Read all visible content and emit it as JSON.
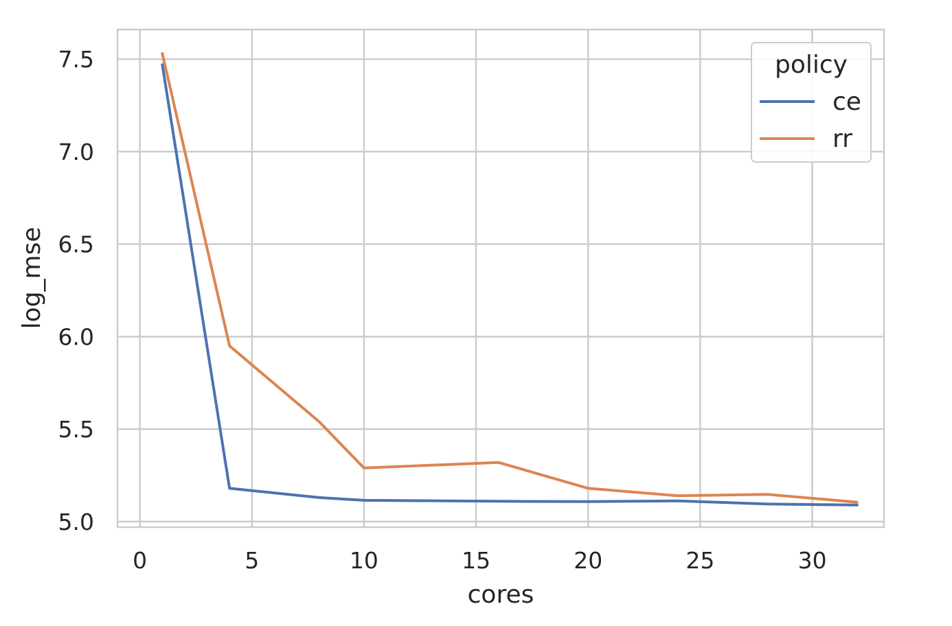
{
  "chart_data": {
    "type": "line",
    "title": "",
    "xlabel": "cores",
    "ylabel": "log_mse",
    "xlim": [
      -1,
      33.2
    ],
    "ylim": [
      4.97,
      7.66
    ],
    "xticks": [
      0,
      5,
      10,
      15,
      20,
      25,
      30
    ],
    "yticks": [
      5.0,
      5.5,
      6.0,
      6.5,
      7.0,
      7.5
    ],
    "ytick_labels": [
      "5.0",
      "5.5",
      "6.0",
      "6.5",
      "7.0",
      "7.5"
    ],
    "grid": true,
    "legend": {
      "title": "policy",
      "placement": "top-right"
    },
    "series": [
      {
        "name": "ce",
        "color": "#4c72b0",
        "x": [
          1,
          4,
          8,
          10,
          16,
          20,
          24,
          28,
          32
        ],
        "y": [
          7.47,
          5.18,
          5.13,
          5.115,
          5.11,
          5.108,
          5.112,
          5.095,
          5.09
        ]
      },
      {
        "name": "rr",
        "color": "#dd8452",
        "x": [
          1,
          4,
          8,
          10,
          16,
          20,
          24,
          28,
          32
        ],
        "y": [
          7.53,
          5.95,
          5.54,
          5.29,
          5.32,
          5.18,
          5.14,
          5.147,
          5.105
        ]
      }
    ]
  }
}
